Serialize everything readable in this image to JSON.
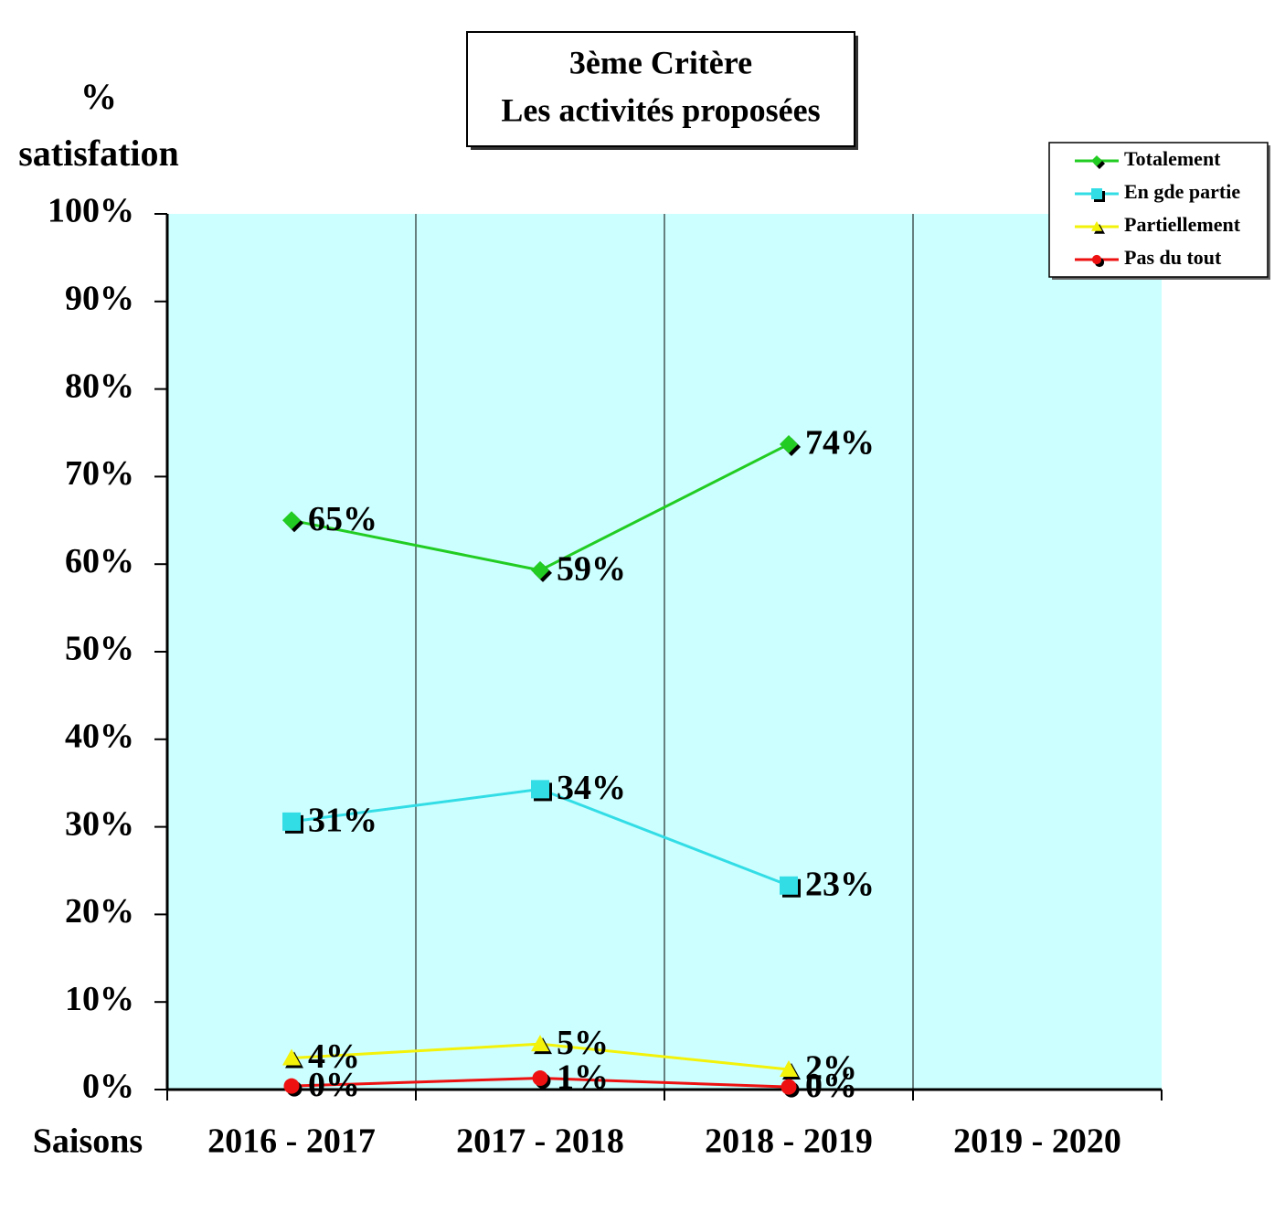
{
  "chart_data": {
    "type": "line",
    "title": [
      "3ème  Critère",
      "Les activités proposées"
    ],
    "y_axis_label": [
      "%",
      "satisfation"
    ],
    "x_axis_label": "Saisons",
    "categories": [
      "2016 - 2017",
      "2017 - 2018",
      "2018 - 2019",
      "2019 - 2020"
    ],
    "series": [
      {
        "name": "Totalement",
        "color": "#22cc22",
        "marker": "diamond",
        "values": [
          65,
          59.3,
          73.7,
          null
        ],
        "value_labels": [
          "65%",
          "59%",
          "74%",
          null
        ]
      },
      {
        "name": "En gde partie",
        "color": "#33dde6",
        "marker": "square",
        "values": [
          30.6,
          34.3,
          23.3,
          null
        ],
        "value_labels": [
          "31%",
          "34%",
          "23%",
          null
        ]
      },
      {
        "name": "Partiellement",
        "color": "#f2f20a",
        "marker": "triangle",
        "values": [
          3.6,
          5.2,
          2.3,
          null
        ],
        "value_labels": [
          "4%",
          "5%",
          "2%",
          null
        ]
      },
      {
        "name": "Pas du tout",
        "color": "#ee1111",
        "marker": "circle",
        "values": [
          0.4,
          1.3,
          0.3,
          null
        ],
        "value_labels": [
          "0%",
          "1%",
          "0%",
          null
        ]
      }
    ],
    "ylim": [
      0,
      100
    ],
    "yticks": [
      {
        "value": 0,
        "label": "0%"
      },
      {
        "value": 10,
        "label": "10%"
      },
      {
        "value": 20,
        "label": "20%"
      },
      {
        "value": 30,
        "label": "30%"
      },
      {
        "value": 40,
        "label": "40%"
      },
      {
        "value": 50,
        "label": "50%"
      },
      {
        "value": 60,
        "label": "60%"
      },
      {
        "value": 70,
        "label": "70%"
      },
      {
        "value": 80,
        "label": "80%"
      },
      {
        "value": 90,
        "label": "90%"
      },
      {
        "value": 100,
        "label": "100%"
      }
    ],
    "plot_background": "#ccffff",
    "legend": "top-right"
  }
}
